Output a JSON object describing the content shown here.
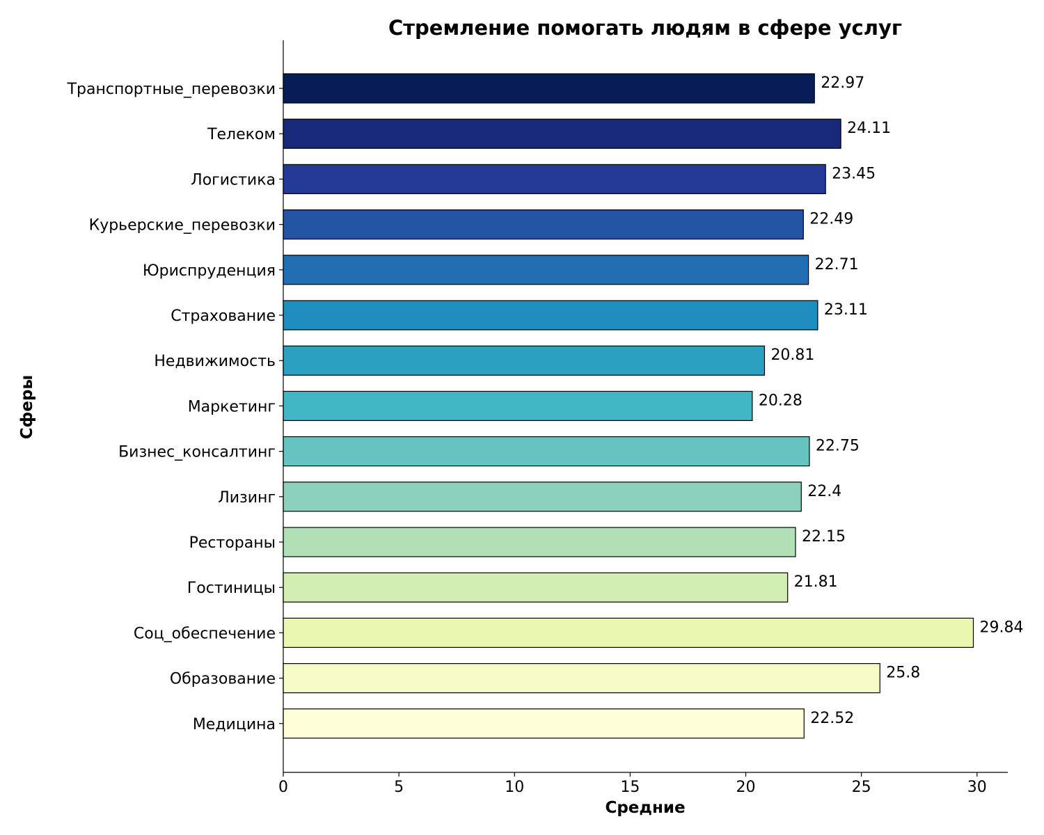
{
  "chart_data": {
    "type": "bar",
    "orientation": "horizontal",
    "title": "Стремление помогать людям в сфере услуг",
    "xlabel": "Средние",
    "ylabel": "Сферы",
    "xlim": [
      0,
      31.33
    ],
    "x_ticks": [
      0,
      5,
      10,
      15,
      20,
      25,
      30
    ],
    "grid": false,
    "categories": [
      "Транспортные_перевозки",
      "Телеком",
      "Логистика",
      "Курьерские_перевозки",
      "Юриспруденция",
      "Страхование",
      "Недвижимость",
      "Маркетинг",
      "Бизнес_консалтинг",
      "Лизинг",
      "Рестораны",
      "Гостиницы",
      "Соц_обеспечение",
      "Образование",
      "Медицина"
    ],
    "values": [
      22.97,
      24.11,
      23.45,
      22.49,
      22.71,
      23.11,
      20.81,
      20.28,
      22.75,
      22.4,
      22.15,
      21.81,
      29.84,
      25.8,
      22.52
    ],
    "value_labels": [
      "22.97",
      "24.11",
      "23.45",
      "22.49",
      "22.71",
      "23.11",
      "20.81",
      "20.28",
      "22.75",
      "22.4",
      "22.15",
      "21.81",
      "29.84",
      "25.8",
      "22.52"
    ],
    "colors": [
      "#081d58",
      "#172978",
      "#253a96",
      "#2353a3",
      "#216fb2",
      "#1f8ebf",
      "#2ca1c2",
      "#41b6c4",
      "#65c4bf",
      "#8bd1bb",
      "#b1e0b7",
      "#d3eeb3",
      "#e9f7b1",
      "#f5fbc4",
      "#ffffd9"
    ]
  }
}
